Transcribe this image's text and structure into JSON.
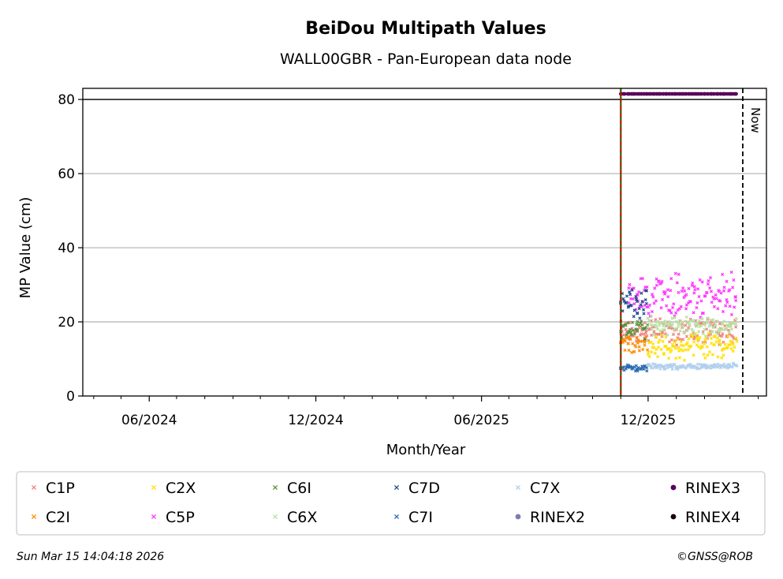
{
  "chart_data": {
    "type": "scatter",
    "title": "BeiDou Multipath Values",
    "subtitle": "WALL00GBR - Pan-European data node",
    "xlabel": "Month/Year",
    "ylabel": "MP Value (cm)",
    "xlim": [
      "2024-03-20",
      "2026-04-10"
    ],
    "ylim": [
      0,
      83
    ],
    "yticks": [
      0,
      20,
      40,
      60,
      80
    ],
    "xticks": [
      {
        "date": "2024-06-01",
        "label": "06/2024"
      },
      {
        "date": "2024-12-01",
        "label": "12/2024"
      },
      {
        "date": "2025-06-01",
        "label": "06/2025"
      },
      {
        "date": "2025-12-01",
        "label": "12/2025"
      }
    ],
    "grid": "horizontal",
    "reference_line_y": 80,
    "rinex_switch_date": "2025-11-01",
    "now_date": "2026-03-15",
    "now_label": "Now",
    "data_start": "2025-11-01",
    "data_end": "2026-03-09",
    "legend_position": "bottom",
    "series": [
      {
        "name": "C1P",
        "color": "#f08080",
        "marker": "x",
        "x_start": "2025-11-01",
        "x_end": "2026-03-09",
        "y_mean": 17.5,
        "y_spread": 4
      },
      {
        "name": "C2I",
        "color": "#ff8c00",
        "marker": "x",
        "x_start": "2025-11-01",
        "x_end": "2025-12-01",
        "y_mean": 14,
        "y_spread": 3
      },
      {
        "name": "C2X",
        "color": "#ffe000",
        "marker": "x",
        "x_start": "2025-12-01",
        "x_end": "2026-03-09",
        "y_mean": 13.5,
        "y_spread": 4
      },
      {
        "name": "C5P",
        "color": "#ff33ff",
        "marker": "x",
        "x_start": "2025-11-10",
        "x_end": "2026-03-09",
        "y_mean": 27,
        "y_spread": 7
      },
      {
        "name": "C6I",
        "color": "#5a8f3c",
        "marker": "x",
        "x_start": "2025-11-01",
        "x_end": "2025-12-01",
        "y_mean": 18,
        "y_spread": 3
      },
      {
        "name": "C6X",
        "color": "#b8e0a0",
        "marker": "x",
        "x_start": "2025-12-01",
        "x_end": "2026-03-09",
        "y_mean": 19,
        "y_spread": 3
      },
      {
        "name": "C7D",
        "color": "#1f4e8c",
        "marker": "x",
        "x_start": "2025-11-01",
        "x_end": "2025-12-01",
        "y_mean": 25,
        "y_spread": 5
      },
      {
        "name": "C7I",
        "color": "#2b6cb0",
        "marker": "x",
        "x_start": "2025-11-01",
        "x_end": "2025-12-01",
        "y_mean": 7.5,
        "y_spread": 1
      },
      {
        "name": "C7X",
        "color": "#b0cfee",
        "marker": "x",
        "x_start": "2025-12-01",
        "x_end": "2026-03-09",
        "y_mean": 8,
        "y_spread": 1
      },
      {
        "name": "RINEX2",
        "color": "#7b7bb5",
        "marker": "o",
        "x_start": null,
        "x_end": null,
        "y_mean": null,
        "y_spread": null
      },
      {
        "name": "RINEX3",
        "color": "#5a005a",
        "marker": "o",
        "x_start": "2025-11-01",
        "x_end": "2026-03-09",
        "y_mean": 81.5,
        "y_spread": 0
      },
      {
        "name": "RINEX4",
        "color": "#1a0010",
        "marker": "o",
        "x_start": null,
        "x_end": null,
        "y_mean": null,
        "y_spread": null
      }
    ]
  },
  "footer": {
    "timestamp": "Sun Mar 15 14:04:18 2026",
    "credit": "©GNSS@ROB"
  }
}
